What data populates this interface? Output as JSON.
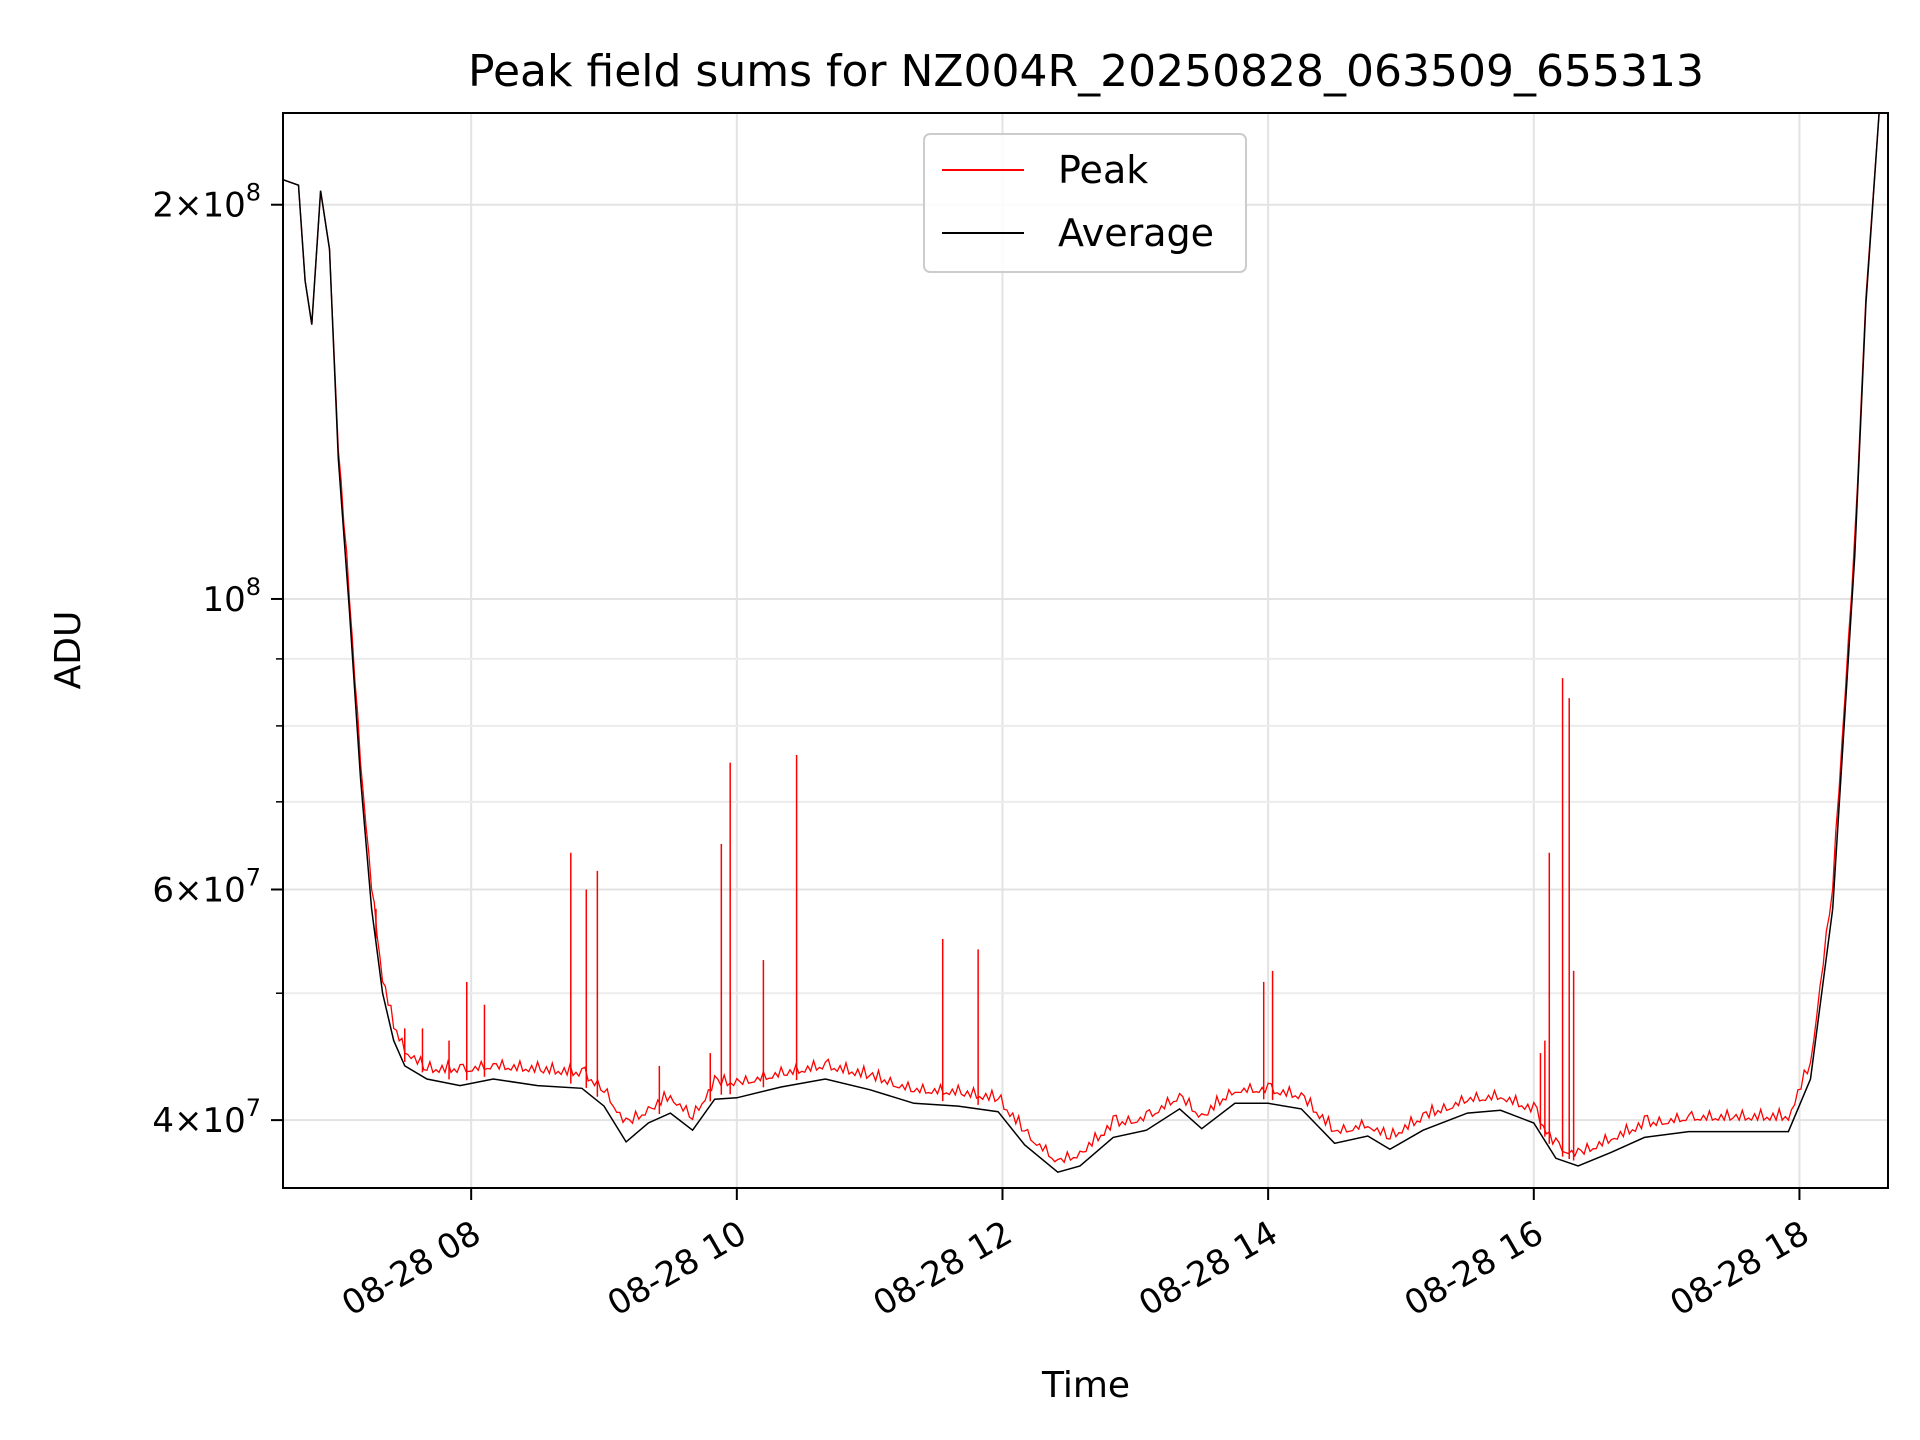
{
  "chart_data": {
    "type": "line",
    "title": "Peak field sums for NZ004R_20250828_063509_655313",
    "xlabel": "Time",
    "ylabel": "ADU",
    "y_scale": "log",
    "ylim": [
      35500000,
      235000000
    ],
    "xlim": [
      "2025-08-28 06:35",
      "2025-08-28 18:40"
    ],
    "x_ticks": [
      {
        "t": "2025-08-28 08:00",
        "label": "08-28 08"
      },
      {
        "t": "2025-08-28 10:00",
        "label": "08-28 10"
      },
      {
        "t": "2025-08-28 12:00",
        "label": "08-28 12"
      },
      {
        "t": "2025-08-28 14:00",
        "label": "08-28 14"
      },
      {
        "t": "2025-08-28 16:00",
        "label": "08-28 16"
      },
      {
        "t": "2025-08-28 18:00",
        "label": "08-28 18"
      }
    ],
    "y_ticks": [
      {
        "value": 40000000,
        "mant": "4",
        "exp": "7",
        "coef": true
      },
      {
        "value": 60000000,
        "mant": "6",
        "exp": "7",
        "coef": true
      },
      {
        "value": 100000000,
        "mant": "10",
        "exp": "8",
        "coef": false
      },
      {
        "value": 200000000,
        "mant": "2",
        "exp": "8",
        "coef": true
      }
    ],
    "y_minor": [
      50000000,
      70000000,
      80000000,
      90000000
    ],
    "grid": true,
    "legend_placement": "upper-center",
    "series": [
      {
        "name": "Peak",
        "color": "#ff0000",
        "points": [
          [
            "2025-08-28 06:35",
            209000000
          ],
          [
            "2025-08-28 06:42",
            207000000
          ],
          [
            "2025-08-28 06:45",
            175000000
          ],
          [
            "2025-08-28 06:48",
            162000000
          ],
          [
            "2025-08-28 06:52",
            205000000
          ],
          [
            "2025-08-28 06:56",
            185000000
          ],
          [
            "2025-08-28 07:00",
            130000000
          ],
          [
            "2025-08-28 07:05",
            100000000
          ],
          [
            "2025-08-28 07:10",
            75000000
          ],
          [
            "2025-08-28 07:15",
            60000000
          ],
          [
            "2025-08-28 07:20",
            51000000
          ],
          [
            "2025-08-28 07:25",
            47000000
          ],
          [
            "2025-08-28 07:30",
            45000000
          ],
          [
            "2025-08-28 07:40",
            43500000
          ],
          [
            "2025-08-28 07:55",
            43500000
          ],
          [
            "2025-08-28 08:10",
            43800000
          ],
          [
            "2025-08-28 08:30",
            43500000
          ],
          [
            "2025-08-28 08:50",
            43200000
          ],
          [
            "2025-08-28 09:00",
            42000000
          ],
          [
            "2025-08-28 09:10",
            39500000
          ],
          [
            "2025-08-28 09:20",
            40500000
          ],
          [
            "2025-08-28 09:30",
            41500000
          ],
          [
            "2025-08-28 09:40",
            40000000
          ],
          [
            "2025-08-28 09:50",
            42500000
          ],
          [
            "2025-08-28 10:00",
            42500000
          ],
          [
            "2025-08-28 10:20",
            43200000
          ],
          [
            "2025-08-28 10:40",
            43800000
          ],
          [
            "2025-08-28 11:00",
            43000000
          ],
          [
            "2025-08-28 11:20",
            42000000
          ],
          [
            "2025-08-28 11:40",
            41800000
          ],
          [
            "2025-08-28 11:58",
            41300000
          ],
          [
            "2025-08-28 12:10",
            39000000
          ],
          [
            "2025-08-28 12:25",
            37000000
          ],
          [
            "2025-08-28 12:35",
            37500000
          ],
          [
            "2025-08-28 12:50",
            39500000
          ],
          [
            "2025-08-28 13:05",
            40000000
          ],
          [
            "2025-08-28 13:20",
            41500000
          ],
          [
            "2025-08-28 13:30",
            40000000
          ],
          [
            "2025-08-28 13:45",
            42000000
          ],
          [
            "2025-08-28 14:00",
            42000000
          ],
          [
            "2025-08-28 14:15",
            41500000
          ],
          [
            "2025-08-28 14:30",
            39000000
          ],
          [
            "2025-08-28 14:45",
            39500000
          ],
          [
            "2025-08-28 14:55",
            38600000
          ],
          [
            "2025-08-28 15:10",
            40000000
          ],
          [
            "2025-08-28 15:30",
            41300000
          ],
          [
            "2025-08-28 15:45",
            41500000
          ],
          [
            "2025-08-28 16:00",
            40500000
          ],
          [
            "2025-08-28 16:10",
            38000000
          ],
          [
            "2025-08-28 16:20",
            37500000
          ],
          [
            "2025-08-28 16:35",
            38500000
          ],
          [
            "2025-08-28 16:50",
            39500000
          ],
          [
            "2025-08-28 17:10",
            40000000
          ],
          [
            "2025-08-28 17:30",
            40000000
          ],
          [
            "2025-08-28 17:55",
            40000000
          ],
          [
            "2025-08-28 18:05",
            44000000
          ],
          [
            "2025-08-28 18:15",
            60000000
          ],
          [
            "2025-08-28 18:25",
            110000000
          ],
          [
            "2025-08-28 18:30",
            170000000
          ],
          [
            "2025-08-28 18:36",
            235000000
          ],
          [
            "2025-08-28 18:40",
            235000000
          ]
        ],
        "spikes": [
          [
            "2025-08-28 07:03",
            110000000
          ],
          [
            "2025-08-28 07:17",
            58000000
          ],
          [
            "2025-08-28 07:30",
            47000000
          ],
          [
            "2025-08-28 07:38",
            47000000
          ],
          [
            "2025-08-28 07:50",
            46000000
          ],
          [
            "2025-08-28 07:58",
            51000000
          ],
          [
            "2025-08-28 08:06",
            49000000
          ],
          [
            "2025-08-28 08:45",
            64000000
          ],
          [
            "2025-08-28 08:52",
            60000000
          ],
          [
            "2025-08-28 08:57",
            62000000
          ],
          [
            "2025-08-28 09:25",
            44000000
          ],
          [
            "2025-08-28 09:48",
            45000000
          ],
          [
            "2025-08-28 09:53",
            65000000
          ],
          [
            "2025-08-28 09:57",
            75000000
          ],
          [
            "2025-08-28 10:12",
            53000000
          ],
          [
            "2025-08-28 10:27",
            76000000
          ],
          [
            "2025-08-28 11:33",
            55000000
          ],
          [
            "2025-08-28 11:49",
            54000000
          ],
          [
            "2025-08-28 13:58",
            51000000
          ],
          [
            "2025-08-28 14:02",
            52000000
          ],
          [
            "2025-08-28 16:03",
            45000000
          ],
          [
            "2025-08-28 16:05",
            46000000
          ],
          [
            "2025-08-28 16:07",
            64000000
          ],
          [
            "2025-08-28 16:13",
            87000000
          ],
          [
            "2025-08-28 16:16",
            84000000
          ],
          [
            "2025-08-28 16:18",
            52000000
          ]
        ]
      },
      {
        "name": "Average",
        "color": "#000000",
        "points": [
          [
            "2025-08-28 06:35",
            209000000
          ],
          [
            "2025-08-28 06:42",
            207000000
          ],
          [
            "2025-08-28 06:45",
            175000000
          ],
          [
            "2025-08-28 06:48",
            162000000
          ],
          [
            "2025-08-28 06:52",
            205000000
          ],
          [
            "2025-08-28 06:56",
            185000000
          ],
          [
            "2025-08-28 07:00",
            128000000
          ],
          [
            "2025-08-28 07:05",
            98000000
          ],
          [
            "2025-08-28 07:10",
            73000000
          ],
          [
            "2025-08-28 07:15",
            58000000
          ],
          [
            "2025-08-28 07:20",
            50000000
          ],
          [
            "2025-08-28 07:25",
            46000000
          ],
          [
            "2025-08-28 07:30",
            44000000
          ],
          [
            "2025-08-28 07:40",
            43000000
          ],
          [
            "2025-08-28 07:55",
            42500000
          ],
          [
            "2025-08-28 08:10",
            43000000
          ],
          [
            "2025-08-28 08:30",
            42500000
          ],
          [
            "2025-08-28 08:50",
            42300000
          ],
          [
            "2025-08-28 09:00",
            41000000
          ],
          [
            "2025-08-28 09:10",
            38500000
          ],
          [
            "2025-08-28 09:20",
            39800000
          ],
          [
            "2025-08-28 09:30",
            40500000
          ],
          [
            "2025-08-28 09:40",
            39300000
          ],
          [
            "2025-08-28 09:50",
            41500000
          ],
          [
            "2025-08-28 10:00",
            41600000
          ],
          [
            "2025-08-28 10:20",
            42400000
          ],
          [
            "2025-08-28 10:40",
            43000000
          ],
          [
            "2025-08-28 11:00",
            42200000
          ],
          [
            "2025-08-28 11:20",
            41200000
          ],
          [
            "2025-08-28 11:40",
            41000000
          ],
          [
            "2025-08-28 11:58",
            40600000
          ],
          [
            "2025-08-28 12:10",
            38300000
          ],
          [
            "2025-08-28 12:25",
            36500000
          ],
          [
            "2025-08-28 12:35",
            36900000
          ],
          [
            "2025-08-28 12:50",
            38800000
          ],
          [
            "2025-08-28 13:05",
            39300000
          ],
          [
            "2025-08-28 13:20",
            40800000
          ],
          [
            "2025-08-28 13:30",
            39400000
          ],
          [
            "2025-08-28 13:45",
            41200000
          ],
          [
            "2025-08-28 14:00",
            41200000
          ],
          [
            "2025-08-28 14:15",
            40800000
          ],
          [
            "2025-08-28 14:30",
            38400000
          ],
          [
            "2025-08-28 14:45",
            38900000
          ],
          [
            "2025-08-28 14:55",
            38000000
          ],
          [
            "2025-08-28 15:10",
            39300000
          ],
          [
            "2025-08-28 15:30",
            40500000
          ],
          [
            "2025-08-28 15:45",
            40700000
          ],
          [
            "2025-08-28 16:00",
            39800000
          ],
          [
            "2025-08-28 16:10",
            37400000
          ],
          [
            "2025-08-28 16:20",
            36900000
          ],
          [
            "2025-08-28 16:35",
            37800000
          ],
          [
            "2025-08-28 16:50",
            38800000
          ],
          [
            "2025-08-28 17:10",
            39200000
          ],
          [
            "2025-08-28 17:30",
            39200000
          ],
          [
            "2025-08-28 17:55",
            39200000
          ],
          [
            "2025-08-28 18:05",
            43000000
          ],
          [
            "2025-08-28 18:15",
            58000000
          ],
          [
            "2025-08-28 18:25",
            108000000
          ],
          [
            "2025-08-28 18:30",
            168000000
          ],
          [
            "2025-08-28 18:36",
            235000000
          ],
          [
            "2025-08-28 18:40",
            235000000
          ]
        ]
      }
    ]
  }
}
